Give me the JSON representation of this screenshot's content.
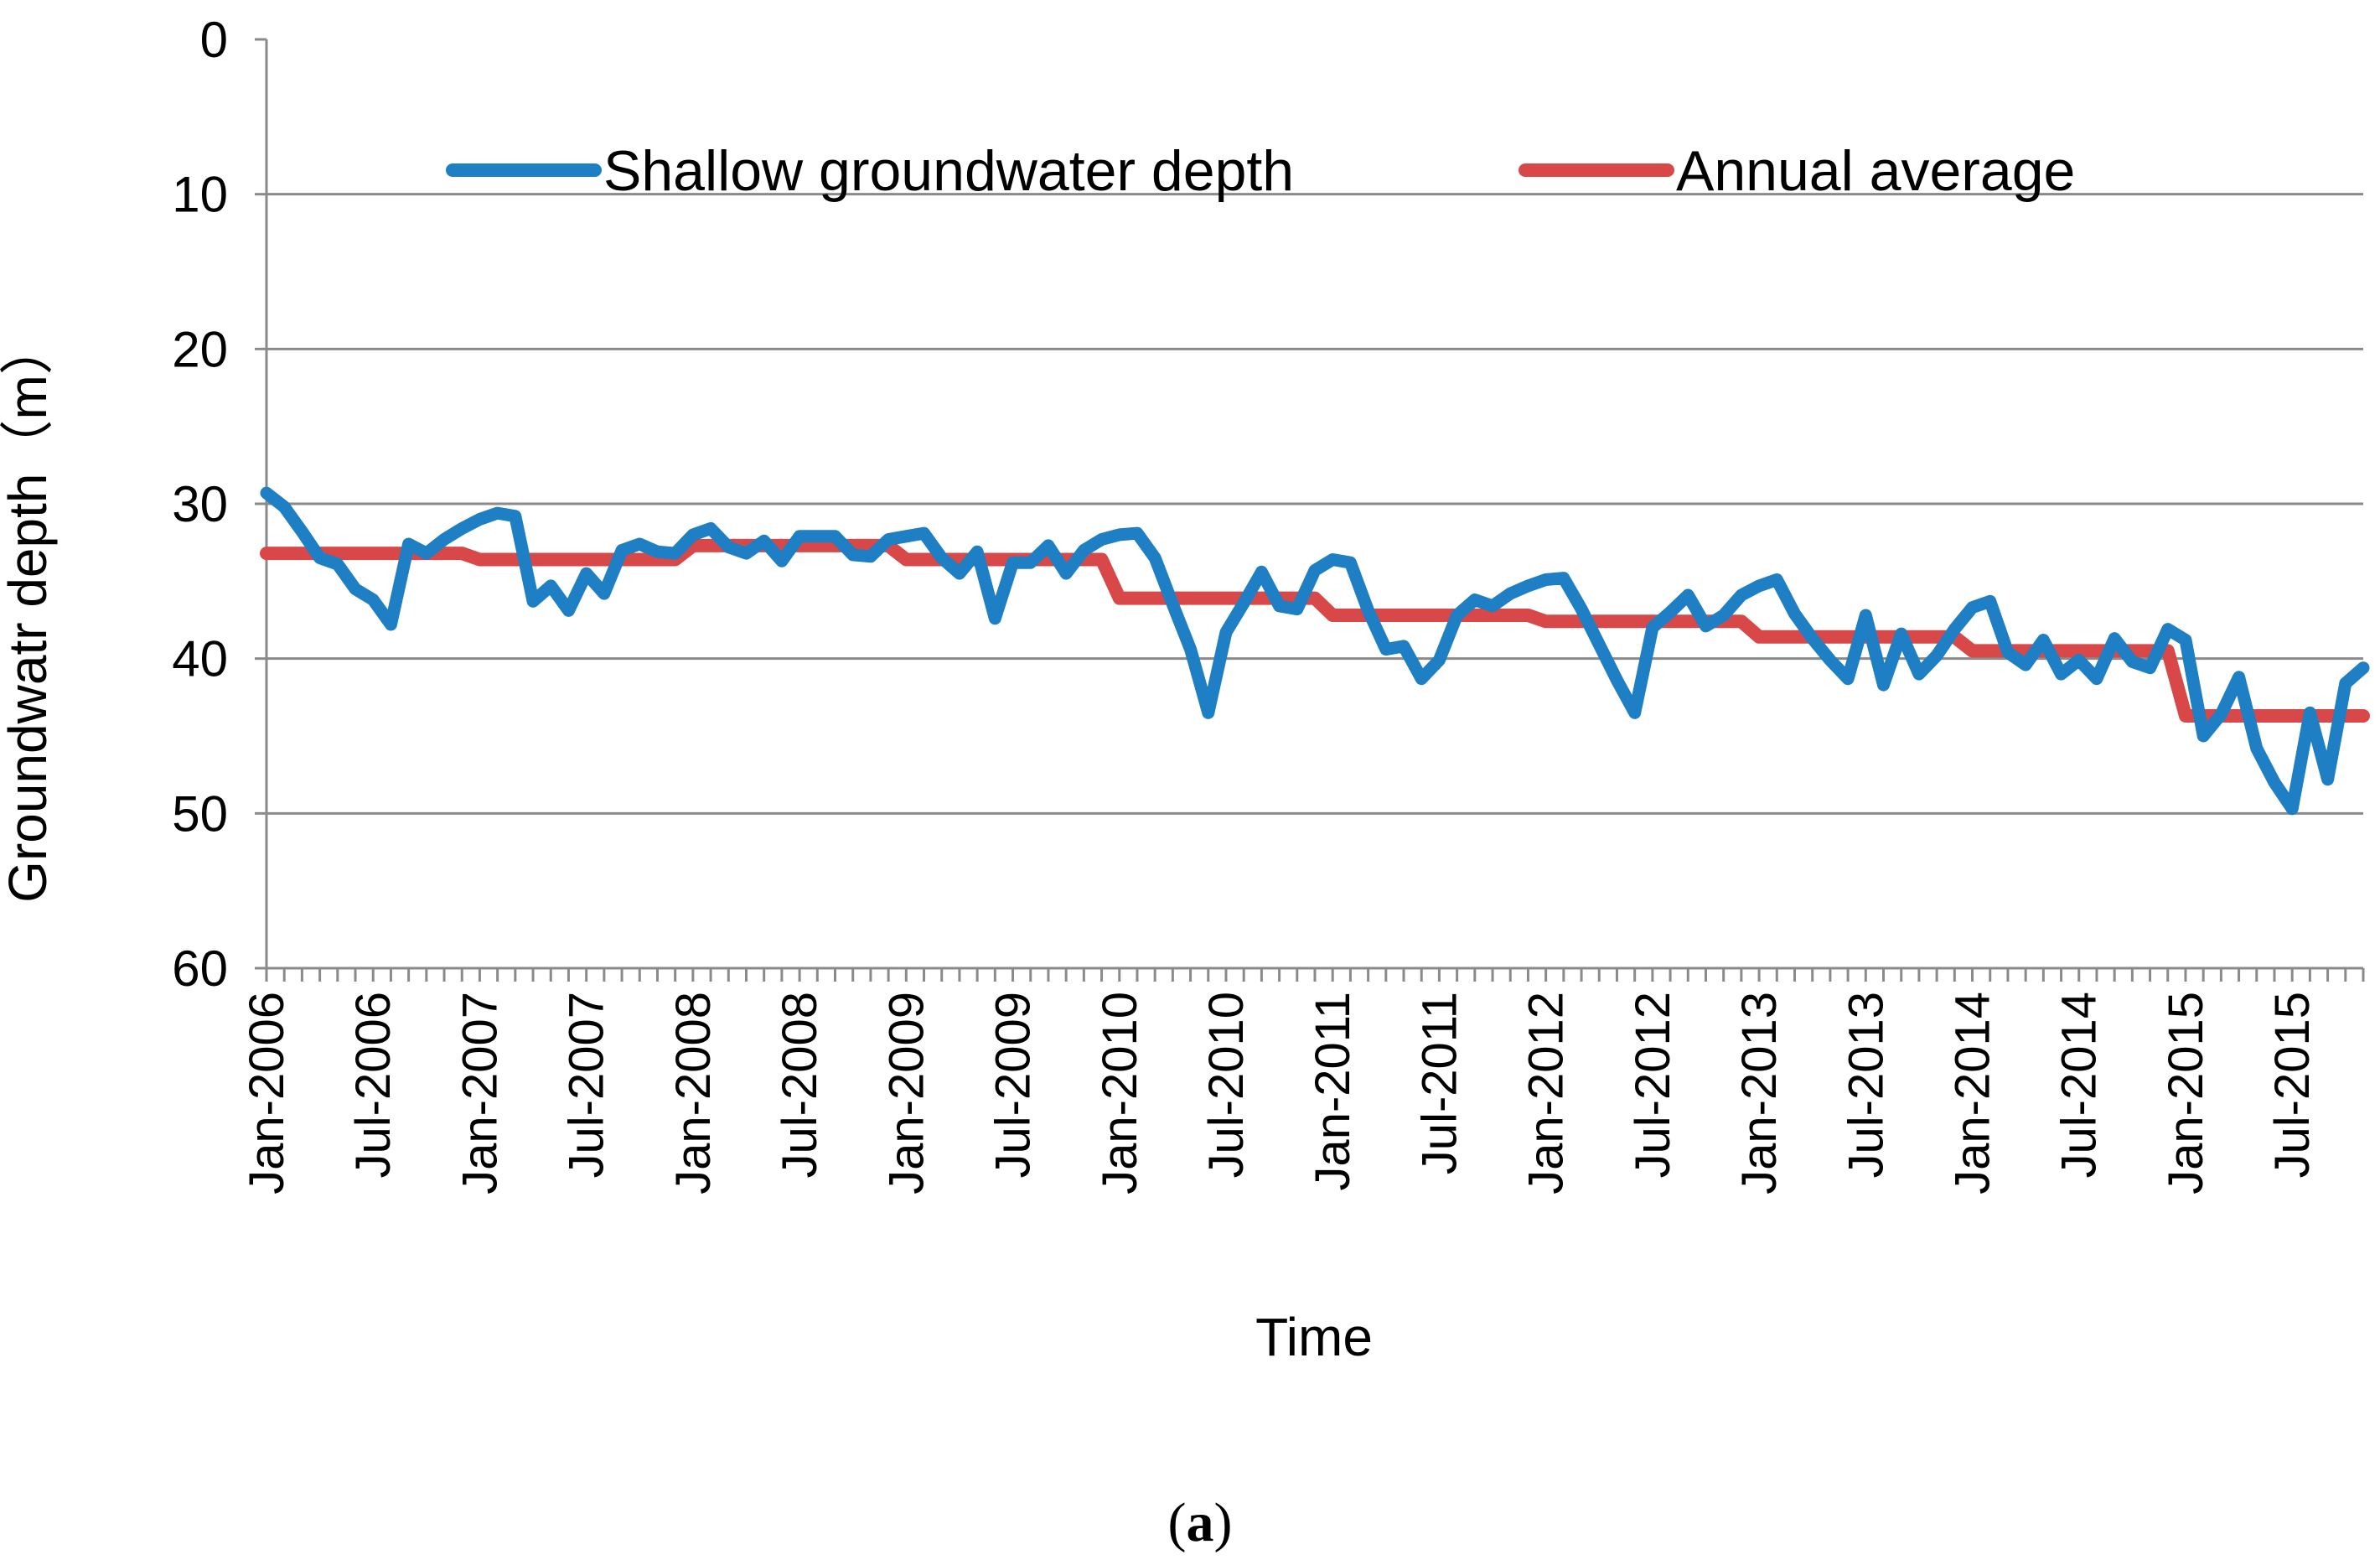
{
  "chart_data": {
    "type": "line",
    "title": "",
    "xlabel": "Time",
    "ylabel": "Groundwatr depth（m）",
    "ylim": [
      0,
      60
    ],
    "y_inverted": true,
    "y_ticks": [
      "0",
      "10",
      "20",
      "30",
      "40",
      "50",
      "60"
    ],
    "x_tick_labels": [
      "Jan-2006",
      "Jul-2006",
      "Jan-2007",
      "Jul-2007",
      "Jan-2008",
      "Jul-2008",
      "Jan-2009",
      "Jul-2009",
      "Jan-2010",
      "Jul-2010",
      "Jan-2011",
      "Jul-2011",
      "Jan-2012",
      "Jul-2012",
      "Jan-2013",
      "Jul-2013",
      "Jan-2014",
      "Jul-2014",
      "Jan-2015",
      "Jul-2015"
    ],
    "grid": true,
    "legend_position": "top",
    "caption": {
      "open": "(",
      "label": "a",
      "close": ")"
    },
    "series": [
      {
        "name": "Shallow groundwater depth",
        "color": "#1f7fc4",
        "values": [
          29.3,
          30.2,
          31.8,
          33.5,
          33.9,
          35.5,
          36.2,
          37.8,
          32.6,
          33.2,
          32.3,
          31.6,
          31.0,
          30.6,
          30.8,
          36.3,
          35.3,
          36.9,
          34.5,
          35.8,
          33.0,
          32.6,
          33.1,
          33.2,
          32.0,
          31.6,
          32.8,
          33.2,
          32.4,
          33.7,
          32.1,
          32.1,
          32.1,
          33.3,
          33.4,
          32.3,
          32.1,
          31.9,
          33.5,
          34.5,
          33.1,
          37.4,
          33.8,
          33.8,
          32.7,
          34.5,
          33.0,
          32.3,
          32.0,
          31.9,
          33.5,
          36.5,
          39.4,
          43.5,
          38.3,
          36.4,
          34.4,
          36.6,
          36.8,
          34.3,
          33.6,
          33.8,
          36.9,
          39.4,
          39.2,
          41.3,
          40.1,
          37.2,
          36.2,
          36.6,
          35.8,
          35.3,
          34.9,
          34.8,
          36.8,
          39.1,
          41.4,
          43.5,
          38.0,
          37.0,
          35.9,
          37.9,
          37.2,
          35.9,
          35.3,
          34.9,
          37.1,
          38.7,
          40.1,
          41.3,
          37.2,
          41.7,
          38.4,
          41.0,
          39.8,
          38.1,
          36.7,
          36.3,
          39.6,
          40.4,
          38.8,
          41.0,
          40.1,
          41.3,
          38.7,
          40.2,
          40.6,
          38.1,
          38.8,
          45.0,
          43.6,
          41.2,
          45.8,
          48.0,
          49.7,
          43.5,
          47.8,
          41.6,
          40.6
        ]
      },
      {
        "name": "Annual average",
        "color": "#d94848",
        "annual_values": [
          33.2,
          33.6,
          32.7,
          33.6,
          36.1,
          37.2,
          37.6,
          38.6,
          39.5,
          43.7
        ]
      }
    ]
  }
}
